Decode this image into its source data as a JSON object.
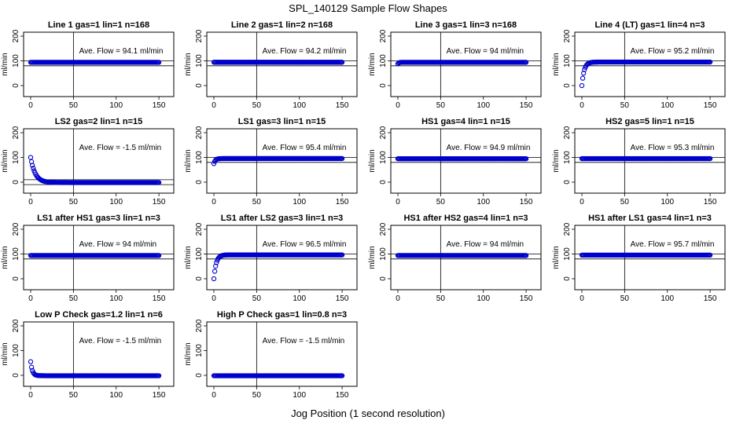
{
  "figure": {
    "title": "SPL_140129  Sample Flow Shapes",
    "xlabel": "Jog Position (1 second resolution)"
  },
  "chart_data": [
    {
      "type": "scatter",
      "title": "Line 1 gas=1 lin=1 n=168",
      "ylabel": "ml/min",
      "annotation": "Ave. Flow = 94.1  ml/min",
      "xlim": [
        0,
        150
      ],
      "ylim": [
        0,
        200
      ],
      "xticks": [
        "0",
        "50",
        "100",
        "150"
      ],
      "yticks": [
        "0",
        "100",
        "200"
      ],
      "vline_x": 50,
      "hlines": [
        80,
        100
      ],
      "shape": "flat",
      "steady": 94.1,
      "start": 94.1,
      "settle": 1
    },
    {
      "type": "scatter",
      "title": "Line 2 gas=1 lin=2 n=168",
      "ylabel": "ml/min",
      "annotation": "Ave. Flow = 94.2  ml/min",
      "xlim": [
        0,
        150
      ],
      "ylim": [
        0,
        200
      ],
      "xticks": [
        "0",
        "50",
        "100",
        "150"
      ],
      "yticks": [
        "0",
        "100",
        "200"
      ],
      "vline_x": 50,
      "hlines": [
        80,
        100
      ],
      "shape": "flat",
      "steady": 94.2,
      "start": 94.2,
      "settle": 1
    },
    {
      "type": "scatter",
      "title": "Line 3 gas=1 lin=3 n=168",
      "ylabel": "ml/min",
      "annotation": "Ave. Flow = 94  ml/min",
      "xlim": [
        0,
        150
      ],
      "ylim": [
        0,
        200
      ],
      "xticks": [
        "0",
        "50",
        "100",
        "150"
      ],
      "yticks": [
        "0",
        "100",
        "200"
      ],
      "vline_x": 50,
      "hlines": [
        80,
        100
      ],
      "shape": "rise",
      "steady": 94,
      "start": 88,
      "settle": 3
    },
    {
      "type": "scatter",
      "title": "Line 4 (LT) gas=1 lin=4 n=3",
      "ylabel": "ml/min",
      "annotation": "Ave. Flow = 95.2  ml/min",
      "xlim": [
        0,
        150
      ],
      "ylim": [
        0,
        200
      ],
      "xticks": [
        "0",
        "50",
        "100",
        "150"
      ],
      "yticks": [
        "0",
        "100",
        "200"
      ],
      "vline_x": 50,
      "hlines": [
        80,
        100
      ],
      "shape": "rise",
      "steady": 95.2,
      "start": 0,
      "settle": 8
    },
    {
      "type": "scatter",
      "title": "LS2 gas=2 lin=1 n=15",
      "ylabel": "ml/min",
      "annotation": "Ave. Flow = -1.5  ml/min",
      "xlim": [
        0,
        150
      ],
      "ylim": [
        0,
        200
      ],
      "xticks": [
        "0",
        "50",
        "100",
        "150"
      ],
      "yticks": [
        "0",
        "100",
        "200"
      ],
      "vline_x": 50,
      "hlines": [
        -10,
        10
      ],
      "shape": "decay",
      "steady": -1.5,
      "start": 100,
      "settle": 16
    },
    {
      "type": "scatter",
      "title": "LS1 gas=3 lin=1 n=15",
      "ylabel": "ml/min",
      "annotation": "Ave. Flow = 95.4  ml/min",
      "xlim": [
        0,
        150
      ],
      "ylim": [
        0,
        200
      ],
      "xticks": [
        "0",
        "50",
        "100",
        "150"
      ],
      "yticks": [
        "0",
        "100",
        "200"
      ],
      "vline_x": 50,
      "hlines": [
        80,
        100
      ],
      "shape": "rise",
      "steady": 95.4,
      "start": 75,
      "settle": 5
    },
    {
      "type": "scatter",
      "title": "HS1 gas=4 lin=1 n=15",
      "ylabel": "ml/min",
      "annotation": "Ave. Flow = 94.9  ml/min",
      "xlim": [
        0,
        150
      ],
      "ylim": [
        0,
        200
      ],
      "xticks": [
        "0",
        "50",
        "100",
        "150"
      ],
      "yticks": [
        "0",
        "100",
        "200"
      ],
      "vline_x": 50,
      "hlines": [
        80,
        100
      ],
      "shape": "flat",
      "steady": 94.9,
      "start": 94.9,
      "settle": 1
    },
    {
      "type": "scatter",
      "title": "HS2 gas=5 lin=1 n=15",
      "ylabel": "ml/min",
      "annotation": "Ave. Flow = 95.3  ml/min",
      "xlim": [
        0,
        150
      ],
      "ylim": [
        0,
        200
      ],
      "xticks": [
        "0",
        "50",
        "100",
        "150"
      ],
      "yticks": [
        "0",
        "100",
        "200"
      ],
      "vline_x": 50,
      "hlines": [
        80,
        100
      ],
      "shape": "flat",
      "steady": 95.3,
      "start": 95.3,
      "settle": 1
    },
    {
      "type": "scatter",
      "title": "LS1 after HS1 gas=3 lin=1 n=3",
      "ylabel": "ml/min",
      "annotation": "Ave. Flow = 94  ml/min",
      "xlim": [
        0,
        150
      ],
      "ylim": [
        0,
        200
      ],
      "xticks": [
        "0",
        "50",
        "100",
        "150"
      ],
      "yticks": [
        "0",
        "100",
        "200"
      ],
      "vline_x": 50,
      "hlines": [
        80,
        100
      ],
      "shape": "flat",
      "steady": 94,
      "start": 94,
      "settle": 1
    },
    {
      "type": "scatter",
      "title": "LS1 after LS2 gas=3 lin=1 n=3",
      "ylabel": "ml/min",
      "annotation": "Ave. Flow = 96.5  ml/min",
      "xlim": [
        0,
        150
      ],
      "ylim": [
        0,
        200
      ],
      "xticks": [
        "0",
        "50",
        "100",
        "150"
      ],
      "yticks": [
        "0",
        "100",
        "200"
      ],
      "vline_x": 50,
      "hlines": [
        80,
        100
      ],
      "shape": "rise",
      "steady": 96.5,
      "start": 0,
      "settle": 8
    },
    {
      "type": "scatter",
      "title": "HS1 after HS2 gas=4 lin=1 n=3",
      "ylabel": "ml/min",
      "annotation": "Ave. Flow = 94  ml/min",
      "xlim": [
        0,
        150
      ],
      "ylim": [
        0,
        200
      ],
      "xticks": [
        "0",
        "50",
        "100",
        "150"
      ],
      "yticks": [
        "0",
        "100",
        "200"
      ],
      "vline_x": 50,
      "hlines": [
        80,
        100
      ],
      "shape": "flat",
      "steady": 94,
      "start": 94,
      "settle": 1
    },
    {
      "type": "scatter",
      "title": "HS1 after LS1 gas=4 lin=1 n=3",
      "ylabel": "ml/min",
      "annotation": "Ave. Flow = 95.7  ml/min",
      "xlim": [
        0,
        150
      ],
      "ylim": [
        0,
        200
      ],
      "xticks": [
        "0",
        "50",
        "100",
        "150"
      ],
      "yticks": [
        "0",
        "100",
        "200"
      ],
      "vline_x": 50,
      "hlines": [
        80,
        100
      ],
      "shape": "flat",
      "steady": 95.7,
      "start": 95.7,
      "settle": 1
    },
    {
      "type": "scatter",
      "title": "Low P Check gas=1.2 lin=1 n=6",
      "ylabel": "ml/min",
      "annotation": "Ave. Flow = -1.5  ml/min",
      "xlim": [
        0,
        150
      ],
      "ylim": [
        0,
        200
      ],
      "xticks": [
        "0",
        "50",
        "100",
        "150"
      ],
      "yticks": [
        "0",
        "100",
        "200"
      ],
      "vline_x": 50,
      "hlines": [],
      "shape": "decay",
      "steady": -1.5,
      "start": 55,
      "settle": 6
    },
    {
      "type": "scatter",
      "title": "High P Check gas=1 lin=0.8 n=3",
      "ylabel": "ml/min",
      "annotation": "Ave. Flow = -1.5  ml/min",
      "xlim": [
        0,
        150
      ],
      "ylim": [
        0,
        200
      ],
      "xticks": [
        "0",
        "50",
        "100",
        "150"
      ],
      "yticks": [
        "0",
        "100",
        "200"
      ],
      "vline_x": 50,
      "hlines": [],
      "shape": "flat",
      "steady": -1.5,
      "start": -1.5,
      "settle": 1
    }
  ],
  "style": {
    "marker_color": "#0000cc",
    "line_color": "#000000"
  }
}
